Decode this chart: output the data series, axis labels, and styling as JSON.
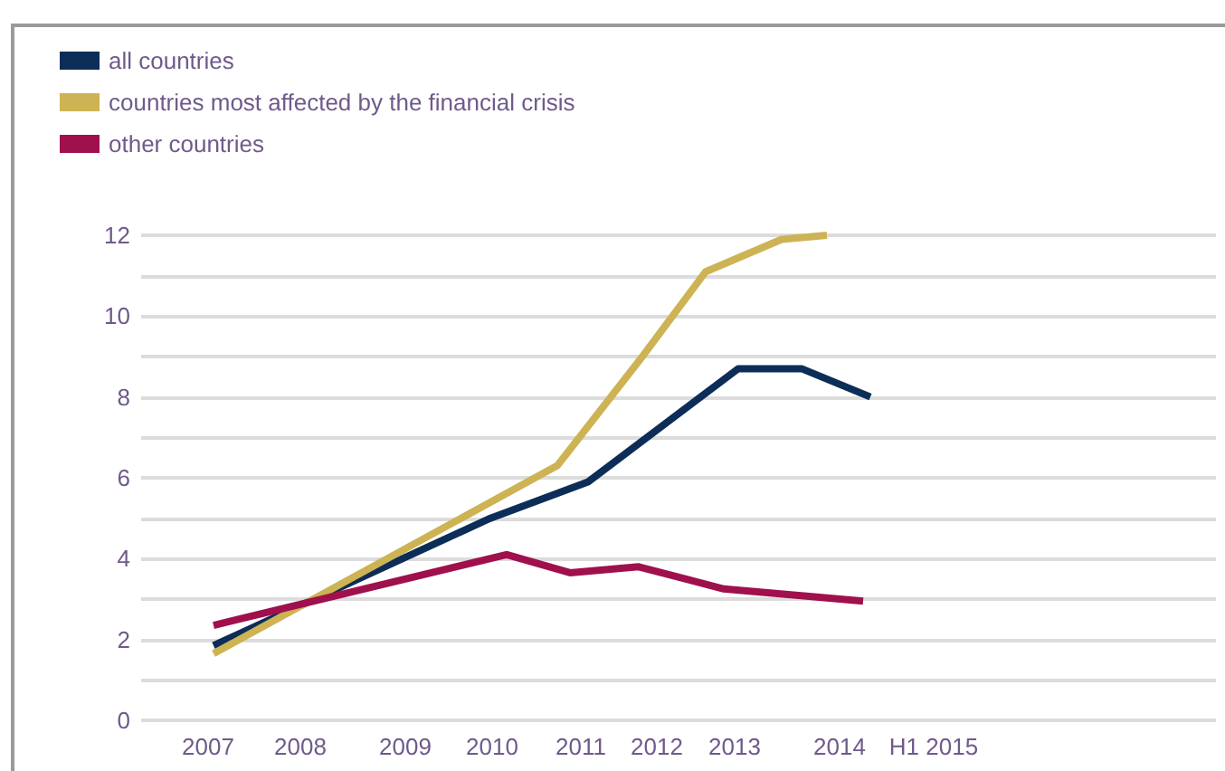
{
  "chart_data": {
    "type": "line",
    "xlim": [
      2006.26,
      2018.14
    ],
    "xticks": [
      {
        "value": 2007,
        "label": "2007"
      },
      {
        "value": 2008.02,
        "label": "2008"
      },
      {
        "value": 2009.18,
        "label": "2009"
      },
      {
        "value": 2010.14,
        "label": "2010"
      },
      {
        "value": 2011.12,
        "label": "2011"
      },
      {
        "value": 2011.96,
        "label": "2012"
      },
      {
        "value": 2012.82,
        "label": "2013"
      },
      {
        "value": 2013.98,
        "label": "2014"
      },
      {
        "value": 2015.02,
        "label": "H1 2015"
      }
    ],
    "ylim": [
      0,
      12
    ],
    "yticks": [
      0,
      {
        "value": 1,
        "label": null
      },
      2,
      {
        "value": 3,
        "label": null
      },
      4,
      {
        "value": 5,
        "label": null
      },
      6,
      {
        "value": 7,
        "label": null
      },
      8,
      {
        "value": 9,
        "label": null
      },
      10,
      {
        "value": 11,
        "label": null
      },
      12
    ],
    "grid": "y",
    "legend": "top left",
    "marker": "none",
    "line_style": "solid",
    "series": [
      {
        "name": "all countries",
        "color": "#0c2d57",
        "x": [
          2007.06,
          2010.12,
          2011.2,
          2012.86,
          2013.56,
          2014.32
        ],
        "values": [
          1.85,
          5.0,
          5.9,
          8.7,
          8.7,
          8.0
        ]
      },
      {
        "name": "countries most affected by the financial crisis",
        "color": "#cdb353",
        "x": [
          2007.06,
          2010.86,
          2011.8,
          2012.5,
          2013.34,
          2013.84
        ],
        "values": [
          1.65,
          6.3,
          9.0,
          11.1,
          11.9,
          12.0
        ]
      },
      {
        "name": "other countries",
        "color": "#a0104d",
        "x": [
          2007.06,
          2010.3,
          2011.0,
          2011.76,
          2012.7,
          2014.24
        ],
        "values": [
          2.35,
          4.1,
          3.65,
          3.8,
          3.25,
          2.95
        ]
      }
    ]
  }
}
